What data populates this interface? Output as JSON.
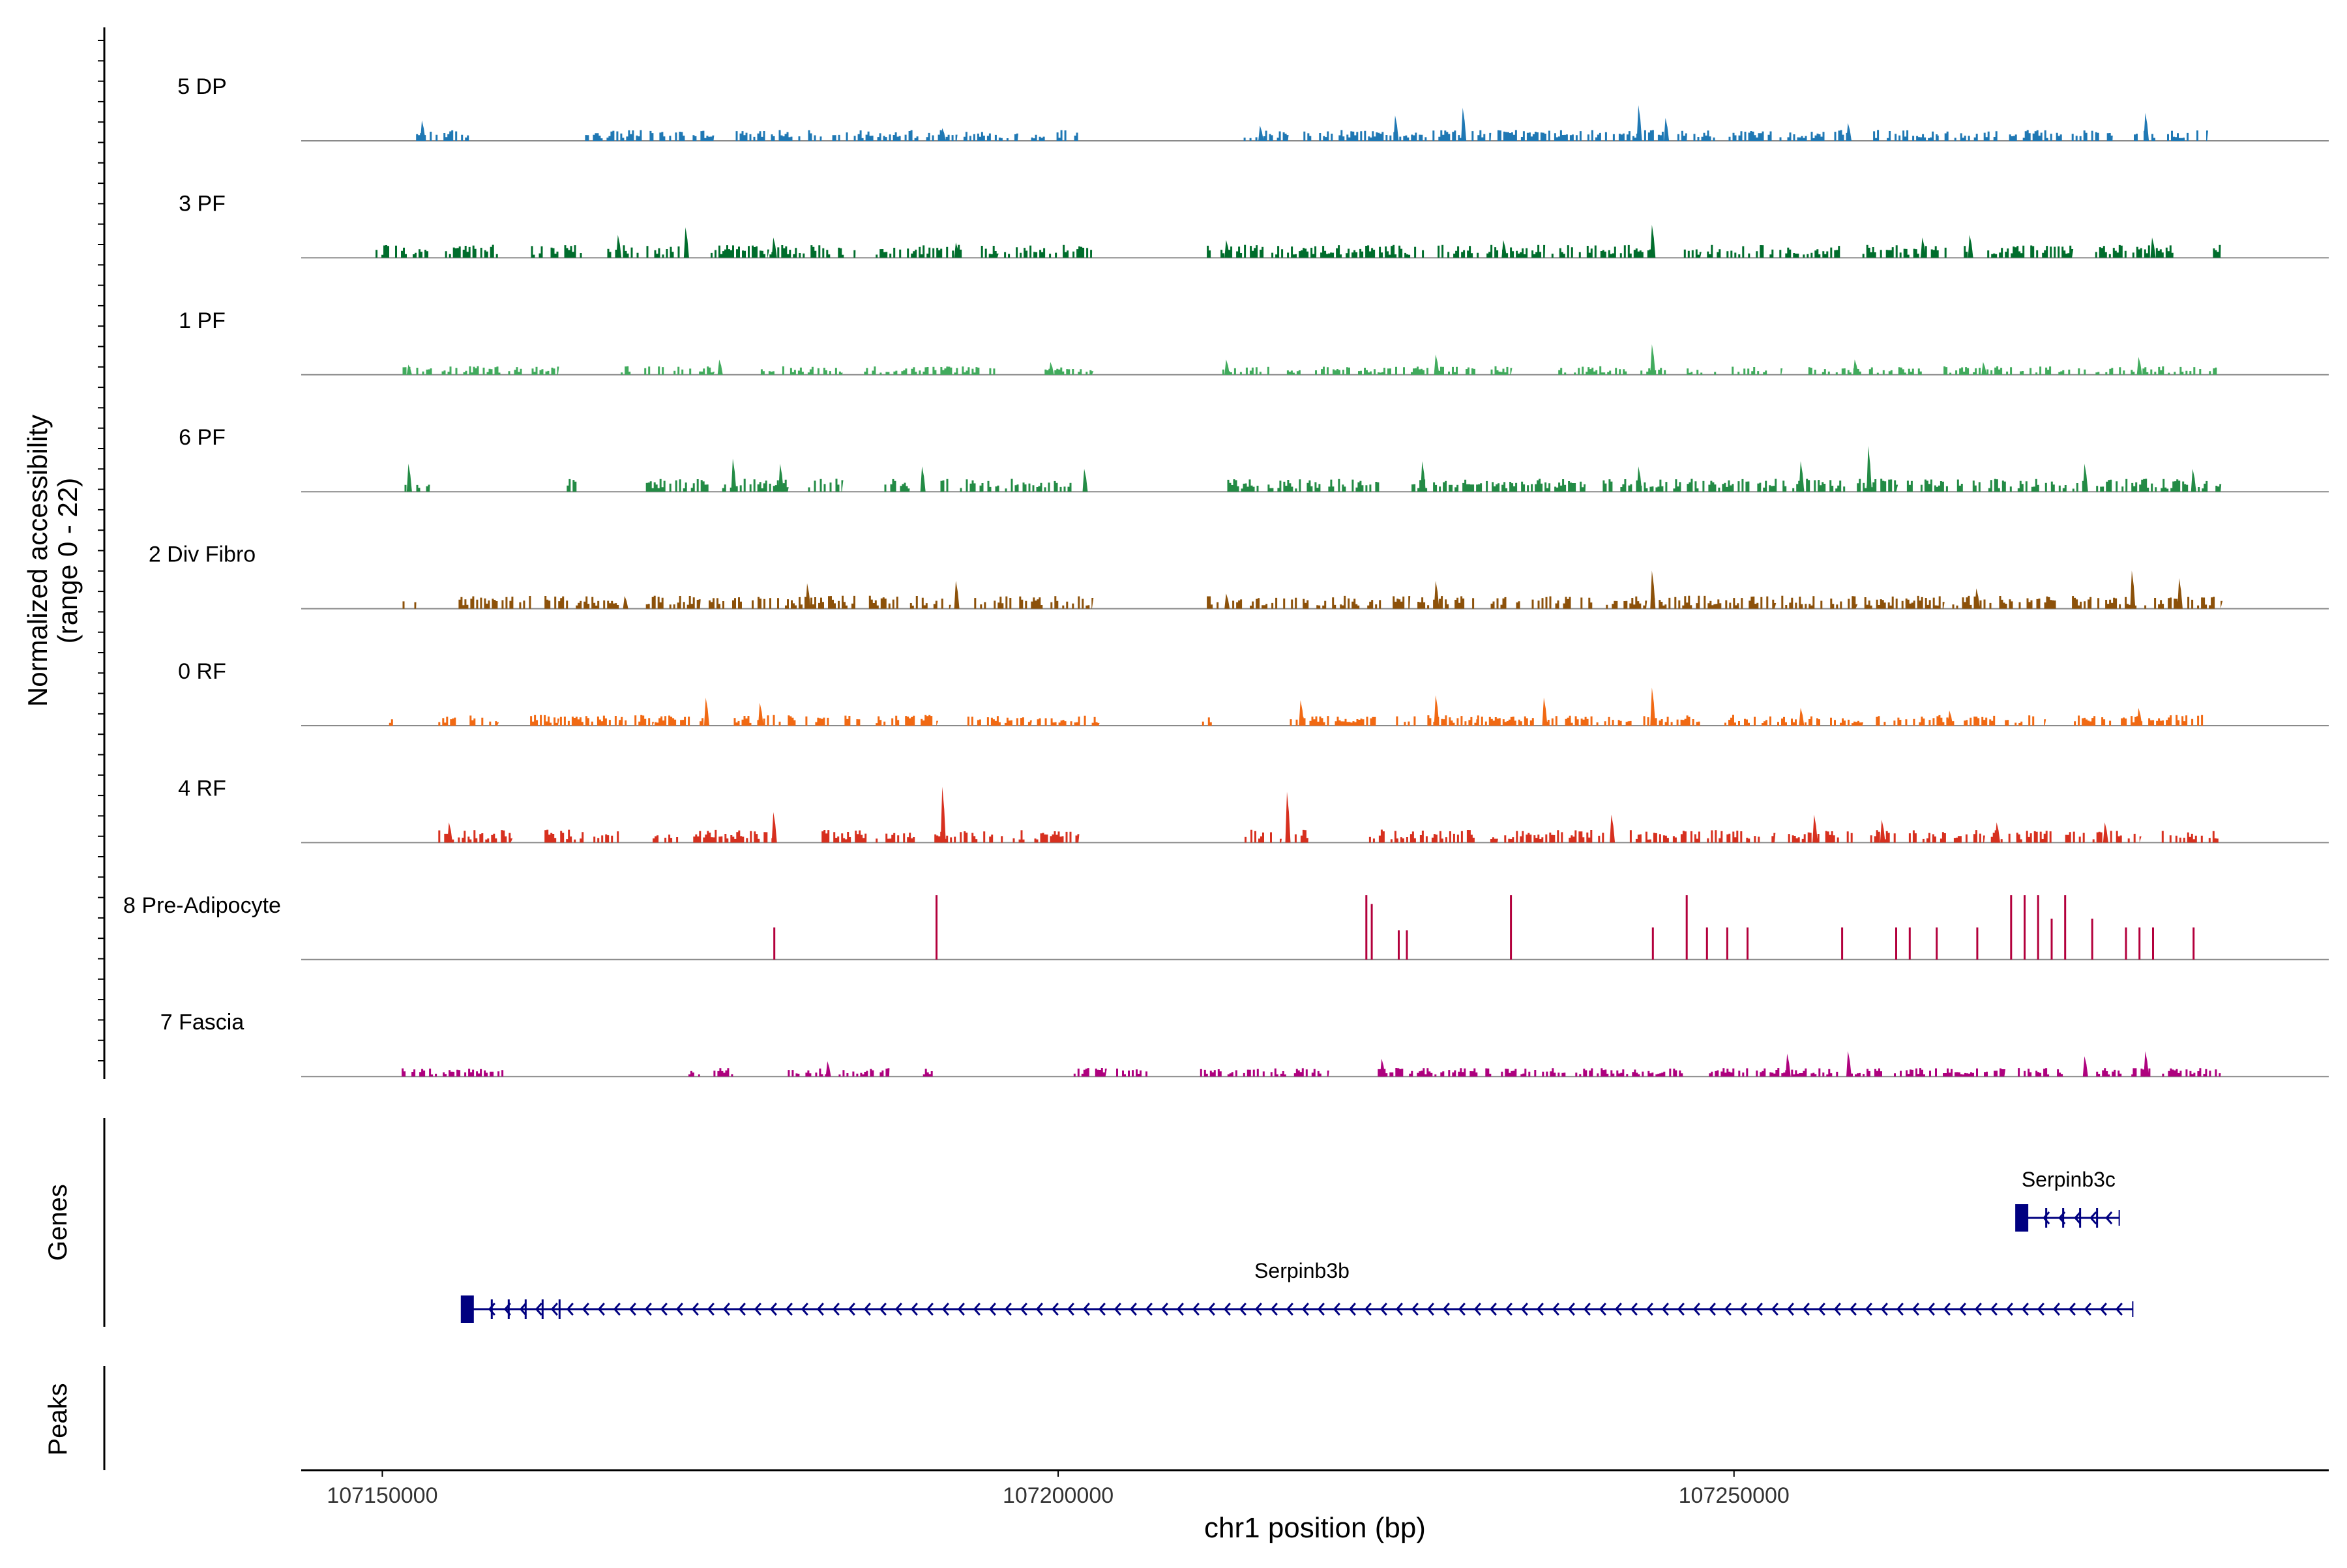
{
  "chart_data": {
    "type": "genome-coverage",
    "region": {
      "chromosome": "chr1",
      "start": 107144000,
      "end": 107294000
    },
    "coverage_panel": {
      "ylabel_line1": "Normalized accessibility",
      "ylabel_line2": "(range 0 - 22)",
      "y_range": [
        0,
        22
      ]
    },
    "tracks": [
      {
        "name": "5 DP",
        "color": "#1f78b4",
        "segments": [
          [
            107152500,
            107156500
          ],
          [
            107165000,
            107174500
          ],
          [
            107176000,
            107182500
          ],
          [
            107183000,
            107192500
          ],
          [
            107193000,
            107197000
          ],
          [
            107198000,
            107202000
          ],
          [
            107213000,
            107217000
          ],
          [
            107218000,
            107232000
          ],
          [
            107232500,
            107246500
          ],
          [
            107247000,
            107258500
          ],
          [
            107260000,
            107265000
          ],
          [
            107265000,
            107278000
          ],
          [
            107279000,
            107285000
          ]
        ],
        "peaks": [
          [
            107153000,
            8
          ],
          [
            107191500,
            5
          ],
          [
            107215000,
            6
          ],
          [
            107225000,
            10
          ],
          [
            107230000,
            13
          ],
          [
            107243000,
            14
          ],
          [
            107245000,
            9
          ],
          [
            107258500,
            7
          ],
          [
            107280500,
            11
          ]
        ],
        "base": 2.5
      },
      {
        "name": "3 PF",
        "color": "#006d2c",
        "segments": [
          [
            107149500,
            107153500
          ],
          [
            107154500,
            107159000
          ],
          [
            107161000,
            107165000
          ],
          [
            107166500,
            107172000
          ],
          [
            107174000,
            107178500
          ],
          [
            107178500,
            107185000
          ],
          [
            107186500,
            107193000
          ],
          [
            107194000,
            107195500
          ],
          [
            107196000,
            107202500
          ],
          [
            107211000,
            107236000
          ],
          [
            107236500,
            107244000
          ],
          [
            107246000,
            107247500
          ],
          [
            107248000,
            107258000
          ],
          [
            107259500,
            107266000
          ],
          [
            107267000,
            107275000
          ],
          [
            107276000,
            107282500
          ],
          [
            107285000,
            107286000
          ]
        ],
        "peaks": [
          [
            107167500,
            9
          ],
          [
            107172500,
            12
          ],
          [
            107179000,
            8
          ],
          [
            107192500,
            6
          ],
          [
            107212500,
            7
          ],
          [
            107233000,
            7
          ],
          [
            107244000,
            13
          ],
          [
            107264000,
            8
          ],
          [
            107267500,
            9
          ],
          [
            107281000,
            8
          ]
        ],
        "base": 3
      },
      {
        "name": "1 PF",
        "color": "#41ab5d",
        "segments": [
          [
            107151500,
            107163000
          ],
          [
            107167500,
            107174500
          ],
          [
            107178000,
            107184000
          ],
          [
            107185500,
            107195500
          ],
          [
            107199000,
            107202500
          ],
          [
            107212000,
            107218000
          ],
          [
            107219000,
            107231000
          ],
          [
            107232000,
            107233500
          ],
          [
            107237000,
            107245500
          ],
          [
            107246500,
            107253500
          ],
          [
            107255500,
            107264000
          ],
          [
            107265500,
            107273500
          ],
          [
            107274000,
            107286000
          ]
        ],
        "peaks": [
          [
            107152000,
            4
          ],
          [
            107175000,
            6
          ],
          [
            107199500,
            5
          ],
          [
            107212500,
            6
          ],
          [
            107228000,
            8
          ],
          [
            107244000,
            12
          ],
          [
            107259000,
            6
          ],
          [
            107268500,
            5
          ],
          [
            107280000,
            7
          ]
        ],
        "base": 2
      },
      {
        "name": "6 PF",
        "color": "#238b45",
        "segments": [
          [
            107151500,
            107153500
          ],
          [
            107163500,
            107164500
          ],
          [
            107169500,
            107180000
          ],
          [
            107181500,
            107184000
          ],
          [
            107187000,
            107189000
          ],
          [
            107191000,
            107201000
          ],
          [
            107211500,
            107215000
          ],
          [
            107215500,
            107224000
          ],
          [
            107226000,
            107239000
          ],
          [
            107240000,
            107252000
          ],
          [
            107252000,
            107262000
          ],
          [
            107262500,
            107266000
          ],
          [
            107266500,
            107276000
          ],
          [
            107276500,
            107286000
          ]
        ],
        "peaks": [
          [
            107152000,
            11
          ],
          [
            107176000,
            13
          ],
          [
            107179500,
            11
          ],
          [
            107190000,
            10
          ],
          [
            107202000,
            9
          ],
          [
            107227000,
            12
          ],
          [
            107243000,
            10
          ],
          [
            107255000,
            12
          ],
          [
            107260000,
            18
          ],
          [
            107276000,
            11
          ],
          [
            107284000,
            9
          ]
        ],
        "base": 3
      },
      {
        "name": "2 Div Fibro",
        "color": "#8c510a",
        "segments": [
          [
            107151500,
            107152500
          ],
          [
            107155500,
            107161000
          ],
          [
            107162000,
            107167500
          ],
          [
            107169500,
            107173500
          ],
          [
            107174000,
            107185000
          ],
          [
            107186000,
            107192000
          ],
          [
            107193500,
            107202500
          ],
          [
            107211000,
            107216500
          ],
          [
            107216500,
            107226000
          ],
          [
            107226000,
            107231000
          ],
          [
            107232000,
            107238000
          ],
          [
            107238500,
            107243500
          ],
          [
            107244000,
            107253000
          ],
          [
            107253500,
            107259000
          ],
          [
            107259500,
            107265500
          ],
          [
            107266000,
            107274000
          ],
          [
            107275000,
            107286000
          ]
        ],
        "peaks": [
          [
            107168000,
            5
          ],
          [
            107181500,
            10
          ],
          [
            107192500,
            11
          ],
          [
            107212500,
            6
          ],
          [
            107228000,
            11
          ],
          [
            107244000,
            15
          ],
          [
            107268000,
            8
          ],
          [
            107279500,
            15
          ],
          [
            107283000,
            12
          ]
        ],
        "base": 3
      },
      {
        "name": "0 RF",
        "color": "#f16913",
        "segments": [
          [
            107150500,
            107151000
          ],
          [
            107154000,
            107158500
          ],
          [
            107160500,
            107163000
          ],
          [
            107163000,
            107167500
          ],
          [
            107167500,
            107170000
          ],
          [
            107170000,
            107174000
          ],
          [
            107176000,
            107179500
          ],
          [
            107180000,
            107186000
          ],
          [
            107186500,
            107191000
          ],
          [
            107193000,
            107198000
          ],
          [
            107198000,
            107203000
          ],
          [
            107210500,
            107211500
          ],
          [
            107217000,
            107223500
          ],
          [
            107225000,
            107231000
          ],
          [
            107231000,
            107237500
          ],
          [
            107237500,
            107248000
          ],
          [
            107249000,
            107259500
          ],
          [
            107260500,
            107267000
          ],
          [
            107267000,
            107273000
          ],
          [
            107275000,
            107280500
          ],
          [
            107280500,
            107285000
          ]
        ],
        "peaks": [
          [
            107174000,
            11
          ],
          [
            107178000,
            9
          ],
          [
            107218000,
            10
          ],
          [
            107228000,
            12
          ],
          [
            107236000,
            11
          ],
          [
            107244000,
            15
          ],
          [
            107255000,
            7
          ],
          [
            107266000,
            6
          ],
          [
            107280000,
            7
          ]
        ],
        "base": 2.5
      },
      {
        "name": "4 RF",
        "color": "#d7301f",
        "segments": [
          [
            107154000,
            107159500
          ],
          [
            107162000,
            107167500
          ],
          [
            107170000,
            107172000
          ],
          [
            107173000,
            107179000
          ],
          [
            107182500,
            107186000
          ],
          [
            107186500,
            107196000
          ],
          [
            107196500,
            107201500
          ],
          [
            107213500,
            107216500
          ],
          [
            107217500,
            107218500
          ],
          [
            107223000,
            107232500
          ],
          [
            107233000,
            107240500
          ],
          [
            107242000,
            107247500
          ],
          [
            107248000,
            107253000
          ],
          [
            107254000,
            107262000
          ],
          [
            107262500,
            107268500
          ],
          [
            107269000,
            107273500
          ],
          [
            107274500,
            107280000
          ],
          [
            107281500,
            107286000
          ]
        ],
        "peaks": [
          [
            107155000,
            8
          ],
          [
            107179000,
            12
          ],
          [
            107191500,
            24
          ],
          [
            107217000,
            20
          ],
          [
            107241000,
            11
          ],
          [
            107256000,
            11
          ],
          [
            107261000,
            9
          ],
          [
            107269500,
            8
          ],
          [
            107277500,
            8
          ]
        ],
        "base": 3
      },
      {
        "name": "8 Pre-Adipocyte",
        "color": "#b3003c",
        "segments": [],
        "spikes": [
          [
            107179000,
            11
          ],
          [
            107191000,
            22
          ],
          [
            107222800,
            22
          ],
          [
            107223200,
            19
          ],
          [
            107225200,
            10
          ],
          [
            107225800,
            10
          ],
          [
            107233500,
            22
          ],
          [
            107244000,
            11
          ],
          [
            107246500,
            22
          ],
          [
            107248000,
            11
          ],
          [
            107249500,
            11
          ],
          [
            107251000,
            11
          ],
          [
            107258000,
            11
          ],
          [
            107262000,
            11
          ],
          [
            107263000,
            11
          ],
          [
            107265000,
            11
          ],
          [
            107268000,
            11
          ],
          [
            107270500,
            22
          ],
          [
            107271500,
            22
          ],
          [
            107272500,
            22
          ],
          [
            107273500,
            14
          ],
          [
            107274500,
            22
          ],
          [
            107276500,
            14
          ],
          [
            107279000,
            11
          ],
          [
            107280000,
            11
          ],
          [
            107281000,
            11
          ],
          [
            107284000,
            11
          ]
        ],
        "base": 0
      },
      {
        "name": "7 Fascia",
        "color": "#ae017e",
        "segments": [
          [
            107151000,
            107159000
          ],
          [
            107172500,
            107173500
          ],
          [
            107174500,
            107176000
          ],
          [
            107180000,
            107187500
          ],
          [
            107190000,
            107191000
          ],
          [
            107201000,
            107203500
          ],
          [
            107204000,
            107207000
          ],
          [
            107210500,
            107220000
          ],
          [
            107223500,
            107246500
          ],
          [
            107248000,
            107258000
          ],
          [
            107258500,
            107270000
          ],
          [
            107271000,
            107274500
          ],
          [
            107276500,
            107279500
          ],
          [
            107279500,
            107286000
          ]
        ],
        "peaks": [
          [
            107183000,
            6
          ],
          [
            107224000,
            7
          ],
          [
            107254000,
            9
          ],
          [
            107258500,
            10
          ],
          [
            107276000,
            8
          ],
          [
            107280500,
            10
          ]
        ],
        "base": 2
      }
    ],
    "genes_label": "Genes",
    "genes": [
      {
        "name": "Serpinb3c",
        "start": 107271000,
        "end": 107278500,
        "strand": "-",
        "row": 1
      },
      {
        "name": "Serpinb3b",
        "start": 107156000,
        "end": 107279500,
        "strand": "-",
        "row": 2
      }
    ],
    "peaks_label": "Peaks",
    "x_axis": {
      "label": "chr1 position (bp)",
      "ticks": [
        107150000,
        107200000,
        107250000
      ]
    },
    "colors": {
      "baseline": "#8a8a8a",
      "axis": "#000000",
      "gene": "#000080"
    }
  }
}
